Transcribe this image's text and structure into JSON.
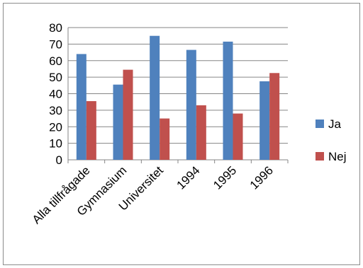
{
  "chart_data": {
    "type": "bar",
    "categories": [
      "Alla tillfrågade",
      "Gymnasium",
      "Universitet",
      "1994",
      "1995",
      "1996"
    ],
    "series": [
      {
        "name": "Ja",
        "values": [
          64,
          45.5,
          75,
          66.5,
          71.5,
          47.5
        ]
      },
      {
        "name": "Nej",
        "values": [
          35.5,
          54.5,
          25,
          33,
          28,
          52.5
        ]
      }
    ],
    "ylim": [
      0,
      80
    ],
    "yticks": [
      0,
      10,
      20,
      30,
      40,
      50,
      60,
      70,
      80
    ],
    "grid": true,
    "legend_position": "right",
    "colors": {
      "Ja": "#4f81bd",
      "Nej": "#c0504d",
      "grid": "#868686"
    }
  }
}
